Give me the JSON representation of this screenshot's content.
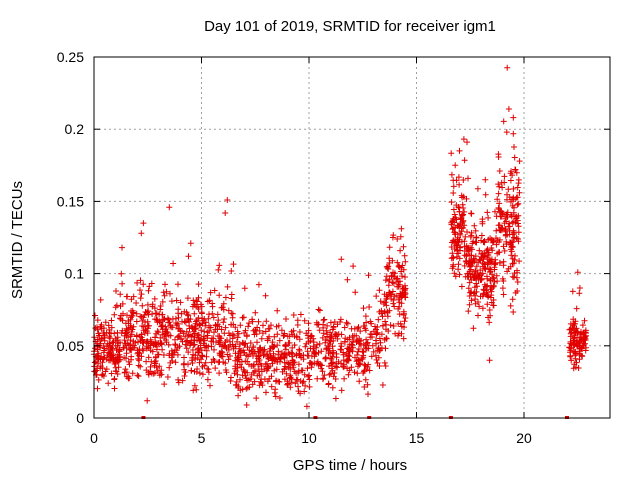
{
  "chart_data": {
    "type": "scatter",
    "title": "Day 101 of 2019, SRMTID for receiver igm1",
    "xlabel": "GPS time / hours",
    "ylabel": "SRMTID / TECUs",
    "xlim": [
      0,
      24
    ],
    "ylim": [
      0,
      0.25
    ],
    "x_ticks": [
      0,
      5,
      10,
      15,
      20
    ],
    "x_tick_labels": [
      "0",
      "5",
      "10",
      "15",
      "20"
    ],
    "y_ticks": [
      0,
      0.05,
      0.1,
      0.15,
      0.2,
      0.25
    ],
    "y_tick_labels": [
      "0",
      "0.05",
      "0.1",
      "0.15",
      "0.2",
      "0.25"
    ],
    "grid": true,
    "marker": "+",
    "color": "#e00000",
    "segments": [
      {
        "x0": 0.0,
        "x1": 1.2,
        "base": 0.045,
        "spread": 0.018,
        "count": 150
      },
      {
        "x0": 1.2,
        "x1": 3.5,
        "base": 0.055,
        "spread": 0.025,
        "count": 260
      },
      {
        "x0": 3.5,
        "x1": 6.5,
        "base": 0.055,
        "spread": 0.025,
        "count": 300
      },
      {
        "x0": 6.5,
        "x1": 9.8,
        "base": 0.04,
        "spread": 0.018,
        "count": 320
      },
      {
        "x0": 9.8,
        "x1": 12.8,
        "base": 0.045,
        "spread": 0.02,
        "count": 260
      },
      {
        "x0": 12.8,
        "x1": 13.6,
        "base": 0.055,
        "spread": 0.022,
        "count": 60
      },
      {
        "x0": 13.6,
        "x1": 14.5,
        "base": 0.085,
        "spread": 0.025,
        "count": 110
      },
      {
        "x0": 16.6,
        "x1": 17.4,
        "base": 0.13,
        "spread": 0.025,
        "count": 120
      },
      {
        "x0": 17.4,
        "x1": 18.7,
        "base": 0.1,
        "spread": 0.025,
        "count": 200
      },
      {
        "x0": 18.7,
        "x1": 19.8,
        "base": 0.13,
        "spread": 0.035,
        "count": 160
      },
      {
        "x0": 22.1,
        "x1": 22.9,
        "base": 0.052,
        "spread": 0.012,
        "count": 110
      }
    ],
    "outliers": [
      {
        "x": 3.5,
        "y": 0.146
      },
      {
        "x": 6.2,
        "y": 0.151
      },
      {
        "x": 6.1,
        "y": 0.142
      },
      {
        "x": 4.5,
        "y": 0.121
      },
      {
        "x": 2.3,
        "y": 0.135
      },
      {
        "x": 2.2,
        "y": 0.128
      },
      {
        "x": 1.3,
        "y": 0.118
      },
      {
        "x": 14.3,
        "y": 0.131
      },
      {
        "x": 13.9,
        "y": 0.125
      },
      {
        "x": 17.0,
        "y": 0.185
      },
      {
        "x": 16.8,
        "y": 0.175
      },
      {
        "x": 19.3,
        "y": 0.214
      },
      {
        "x": 19.5,
        "y": 0.208
      },
      {
        "x": 19.2,
        "y": 0.198
      },
      {
        "x": 18.2,
        "y": 0.165
      },
      {
        "x": 18.4,
        "y": 0.04
      },
      {
        "x": 22.5,
        "y": 0.101
      },
      {
        "x": 22.6,
        "y": 0.09
      },
      {
        "x": 9.9,
        "y": 0.008
      },
      {
        "x": 7.1,
        "y": 0.009
      },
      {
        "x": 11.5,
        "y": 0.11
      }
    ],
    "baseline_marks": [
      2.3,
      10.3,
      12.8,
      16.6,
      22.0
    ]
  }
}
